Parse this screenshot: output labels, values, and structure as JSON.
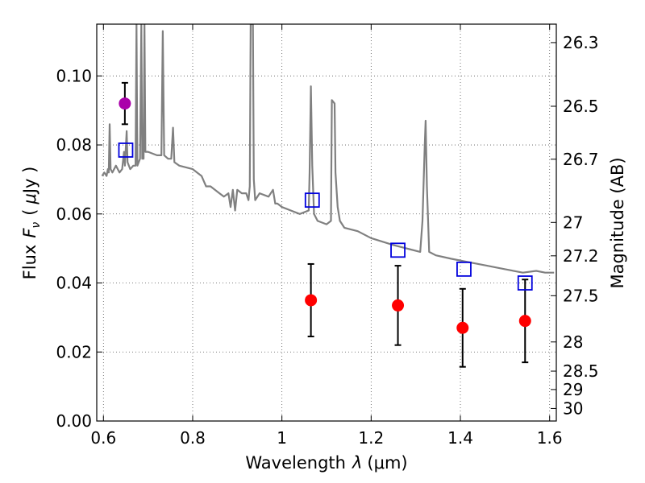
{
  "chart_data": {
    "type": "scatter",
    "xlabel": "Wavelength",
    "xlabel_symbol": "λ",
    "xlabel_unit": "(μm)",
    "ylabel": "Flux",
    "ylabel_symbol": "F",
    "ylabel_sub": "ν",
    "ylabel_unit_open": "(",
    "ylabel_unit_mu": "μ",
    "ylabel_unit_rest": "Jy )",
    "y2label": "Magnitude (AB)",
    "xlim": [
      0.585,
      1.615
    ],
    "ylim": [
      0.0,
      0.115
    ],
    "xticks": [
      "0.6",
      "0.8",
      "1",
      "1.2",
      "1.4",
      "1.6"
    ],
    "xtick_values": [
      0.6,
      0.8,
      1.0,
      1.2,
      1.4,
      1.6
    ],
    "yticks": [
      "0.00",
      "0.02",
      "0.04",
      "0.06",
      "0.08",
      "0.10"
    ],
    "ytick_values": [
      0.0,
      0.02,
      0.04,
      0.06,
      0.08,
      0.1
    ],
    "y2ticks": [
      {
        "label": "26.3",
        "mag": 26.3
      },
      {
        "label": "26.5",
        "mag": 26.5
      },
      {
        "label": "26.7",
        "mag": 26.7
      },
      {
        "label": "27",
        "mag": 27.0
      },
      {
        "label": "27.2",
        "mag": 27.2
      },
      {
        "label": "27.5",
        "mag": 27.5
      },
      {
        "label": "28",
        "mag": 28.0
      },
      {
        "label": "28.5",
        "mag": 28.5
      },
      {
        "label": "29",
        "mag": 29.0
      },
      {
        "label": "30",
        "mag": 30.0
      }
    ],
    "grid": true,
    "colors": {
      "model": "#808080",
      "observed": "#ff0000",
      "detection": "#aa00aa",
      "model_boxes": "#0000dd",
      "errorbar": "#000000"
    },
    "series": [
      {
        "name": "model spectrum",
        "kind": "line",
        "points": [
          [
            0.597,
            0.071
          ],
          [
            0.602,
            0.072
          ],
          [
            0.607,
            0.071
          ],
          [
            0.61,
            0.073
          ],
          [
            0.612,
            0.072
          ],
          [
            0.614,
            0.086
          ],
          [
            0.616,
            0.073
          ],
          [
            0.62,
            0.072
          ],
          [
            0.628,
            0.074
          ],
          [
            0.636,
            0.072
          ],
          [
            0.642,
            0.073
          ],
          [
            0.646,
            0.078
          ],
          [
            0.648,
            0.074
          ],
          [
            0.652,
            0.084
          ],
          [
            0.654,
            0.075
          ],
          [
            0.66,
            0.073
          ],
          [
            0.667,
            0.074
          ],
          [
            0.672,
            0.074
          ],
          [
            0.674,
            0.115
          ],
          [
            0.676,
            0.074
          ],
          [
            0.682,
            0.076
          ],
          [
            0.685,
            0.115
          ],
          [
            0.687,
            0.076
          ],
          [
            0.69,
            0.076
          ],
          [
            0.692,
            0.115
          ],
          [
            0.694,
            0.078
          ],
          [
            0.7,
            0.078
          ],
          [
            0.72,
            0.077
          ],
          [
            0.73,
            0.077
          ],
          [
            0.733,
            0.113
          ],
          [
            0.736,
            0.077
          ],
          [
            0.745,
            0.076
          ],
          [
            0.752,
            0.076
          ],
          [
            0.756,
            0.085
          ],
          [
            0.759,
            0.075
          ],
          [
            0.77,
            0.074
          ],
          [
            0.8,
            0.073
          ],
          [
            0.82,
            0.071
          ],
          [
            0.83,
            0.068
          ],
          [
            0.84,
            0.068
          ],
          [
            0.86,
            0.066
          ],
          [
            0.87,
            0.065
          ],
          [
            0.88,
            0.066
          ],
          [
            0.885,
            0.062
          ],
          [
            0.89,
            0.067
          ],
          [
            0.895,
            0.061
          ],
          [
            0.9,
            0.067
          ],
          [
            0.91,
            0.066
          ],
          [
            0.92,
            0.066
          ],
          [
            0.925,
            0.064
          ],
          [
            0.928,
            0.068
          ],
          [
            0.93,
            0.115
          ],
          [
            0.935,
            0.115
          ],
          [
            0.937,
            0.07
          ],
          [
            0.94,
            0.064
          ],
          [
            0.95,
            0.066
          ],
          [
            0.97,
            0.065
          ],
          [
            0.98,
            0.067
          ],
          [
            0.985,
            0.063
          ],
          [
            0.99,
            0.063
          ],
          [
            1.0,
            0.062
          ],
          [
            1.02,
            0.061
          ],
          [
            1.04,
            0.06
          ],
          [
            1.06,
            0.061
          ],
          [
            1.062,
            0.072
          ],
          [
            1.065,
            0.097
          ],
          [
            1.068,
            0.074
          ],
          [
            1.072,
            0.06
          ],
          [
            1.08,
            0.058
          ],
          [
            1.1,
            0.057
          ],
          [
            1.11,
            0.058
          ],
          [
            1.112,
            0.093
          ],
          [
            1.118,
            0.092
          ],
          [
            1.12,
            0.072
          ],
          [
            1.125,
            0.062
          ],
          [
            1.13,
            0.058
          ],
          [
            1.14,
            0.056
          ],
          [
            1.17,
            0.055
          ],
          [
            1.2,
            0.053
          ],
          [
            1.25,
            0.051
          ],
          [
            1.28,
            0.05
          ],
          [
            1.31,
            0.049
          ],
          [
            1.315,
            0.058
          ],
          [
            1.32,
            0.079
          ],
          [
            1.322,
            0.087
          ],
          [
            1.325,
            0.068
          ],
          [
            1.33,
            0.049
          ],
          [
            1.345,
            0.048
          ],
          [
            1.38,
            0.047
          ],
          [
            1.42,
            0.046
          ],
          [
            1.46,
            0.045
          ],
          [
            1.5,
            0.044
          ],
          [
            1.54,
            0.043
          ],
          [
            1.57,
            0.0435
          ],
          [
            1.59,
            0.043
          ],
          [
            1.61,
            0.043
          ]
        ]
      },
      {
        "name": "observed photometry",
        "kind": "errorbar",
        "points": [
          {
            "x": 1.065,
            "y": 0.035,
            "yerr": 0.0105
          },
          {
            "x": 1.26,
            "y": 0.0335,
            "yerr": 0.0115
          },
          {
            "x": 1.405,
            "y": 0.027,
            "yerr": 0.0113
          },
          {
            "x": 1.545,
            "y": 0.029,
            "yerr": 0.012
          }
        ]
      },
      {
        "name": "detection",
        "kind": "errorbar",
        "points": [
          {
            "x": 0.648,
            "y": 0.092,
            "yerr": 0.006
          }
        ]
      },
      {
        "name": "model photometry",
        "kind": "scatter",
        "marker": "square",
        "points": [
          {
            "x": 0.65,
            "y": 0.0785
          },
          {
            "x": 1.068,
            "y": 0.064
          },
          {
            "x": 1.26,
            "y": 0.0495
          },
          {
            "x": 1.408,
            "y": 0.044
          },
          {
            "x": 1.545,
            "y": 0.04
          }
        ]
      }
    ]
  }
}
